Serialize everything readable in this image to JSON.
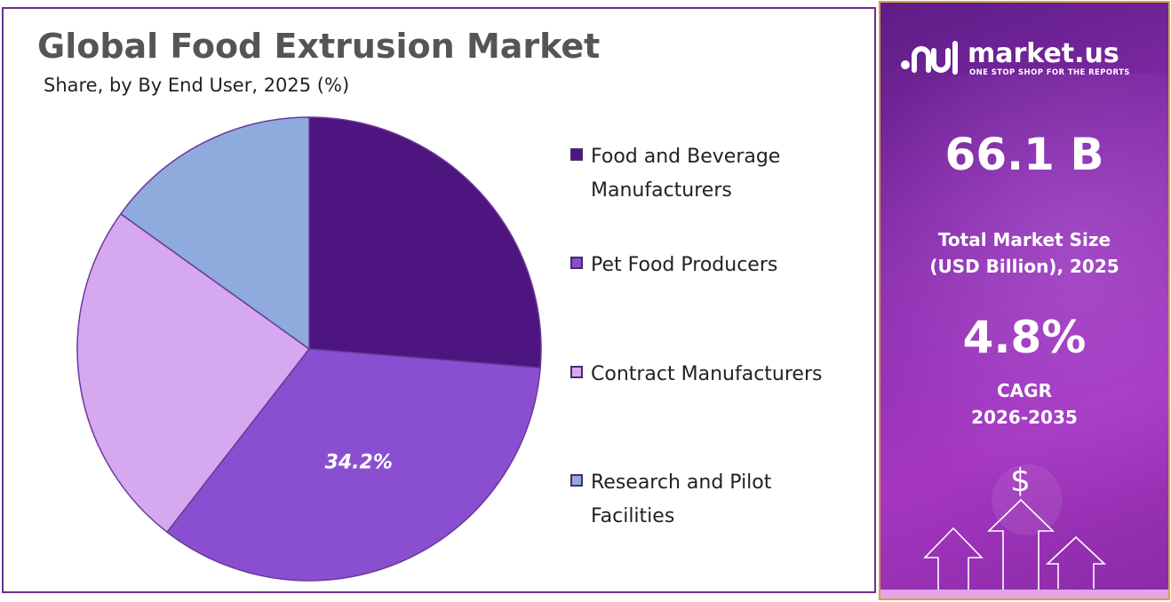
{
  "title": "Global Food Extrusion Market",
  "subtitle": "Share, by By End User, 2025 (%)",
  "chart_data": {
    "type": "pie",
    "categories": [
      "Food and Beverage Manufacturers",
      "Pet Food Producers",
      "Contract Manufacturers",
      "Research and Pilot Facilities"
    ],
    "values": [
      26.3,
      34.2,
      24.4,
      15.1
    ],
    "labels": [
      "",
      "34.2%",
      "",
      ""
    ],
    "colors": [
      "#4e1580",
      "#8a4fd0",
      "#d5a8f0",
      "#8faadc"
    ],
    "legend_position": "right"
  },
  "legend": [
    {
      "line1": "Food and Beverage",
      "line2": "Manufacturers"
    },
    {
      "line1": "Pet Food Producers",
      "line2": ""
    },
    {
      "line1": "Contract Manufacturers",
      "line2": ""
    },
    {
      "line1": "Research and Pilot",
      "line2": "Facilities"
    }
  ],
  "sidebar": {
    "brand_name": "market.us",
    "brand_tagline": "ONE STOP SHOP FOR THE REPORTS",
    "market_size_value": "66.1 B",
    "market_size_label_line1": "Total Market Size",
    "market_size_label_line2": "(USD Billion), 2025",
    "cagr_value": "4.8%",
    "cagr_label_line1": "CAGR",
    "cagr_label_line2": "2026-2035",
    "dollar_symbol": "$"
  },
  "icons": {
    "brand_logo": "market-us-logo-icon",
    "dollar": "dollar-icon",
    "arrows": "growth-arrows-icon"
  }
}
